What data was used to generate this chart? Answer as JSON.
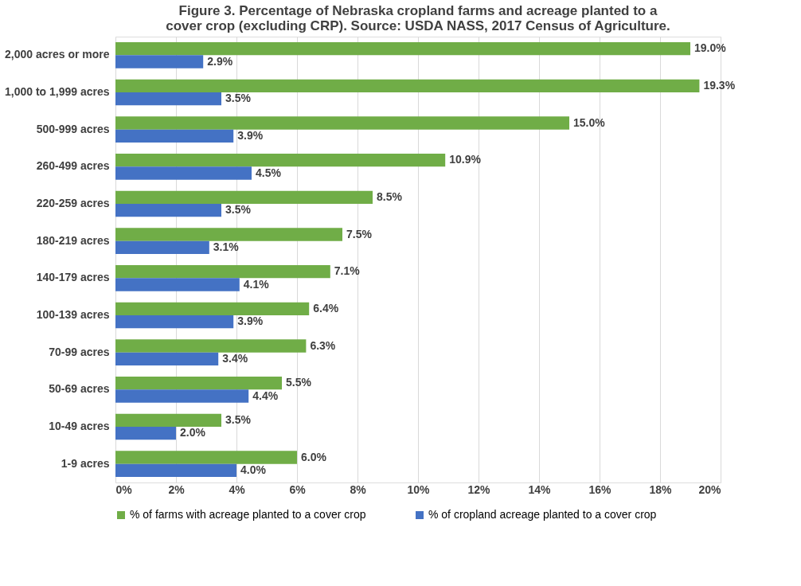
{
  "chart_data": {
    "type": "bar",
    "orientation": "horizontal",
    "title": "Figure 3.  Percentage of Nebraska cropland farms and acreage planted to a cover crop (excluding CRP). Source: USDA NASS, 2017 Census of Agriculture.",
    "categories": [
      "2,000 acres or more",
      "1,000 to 1,999 acres",
      "500-999 acres",
      "260-499 acres",
      "220-259 acres",
      "180-219 acres",
      "140-179 acres",
      "100-139 acres",
      "70-99 acres",
      "50-69 acres",
      "10-49 acres",
      "1-9 acres"
    ],
    "series": [
      {
        "name": "% of farms with acreage planted to a cover crop",
        "color": "#70ad47",
        "values": [
          19.0,
          19.3,
          15.0,
          10.9,
          8.5,
          7.5,
          7.1,
          6.4,
          6.3,
          5.5,
          3.5,
          6.0
        ],
        "value_labels": [
          "19.0%",
          "19.3%",
          "15.0%",
          "10.9%",
          "8.5%",
          "7.5%",
          "7.1%",
          "6.4%",
          "6.3%",
          "5.5%",
          "3.5%",
          "6.0%"
        ]
      },
      {
        "name": "% of cropland acreage planted to a cover crop",
        "color": "#4472c4",
        "values": [
          2.9,
          3.5,
          3.9,
          4.5,
          3.5,
          3.1,
          4.1,
          3.9,
          3.4,
          4.4,
          2.0,
          4.0
        ],
        "value_labels": [
          "2.9%",
          "3.5%",
          "3.9%",
          "4.5%",
          "3.5%",
          "3.1%",
          "4.1%",
          "3.9%",
          "3.4%",
          "4.4%",
          "2.0%",
          "4.0%"
        ]
      }
    ],
    "xlim": [
      0,
      20
    ],
    "xticks": [
      {
        "value": 0,
        "label": "0%"
      },
      {
        "value": 2,
        "label": "2%"
      },
      {
        "value": 4,
        "label": "4%"
      },
      {
        "value": 6,
        "label": "6%"
      },
      {
        "value": 8,
        "label": "8%"
      },
      {
        "value": 10,
        "label": "10%"
      },
      {
        "value": 12,
        "label": "12%"
      },
      {
        "value": 14,
        "label": "14%"
      },
      {
        "value": 16,
        "label": "16%"
      },
      {
        "value": 18,
        "label": "18%"
      },
      {
        "value": 20,
        "label": "20%"
      }
    ],
    "grid": "x",
    "legend": "bottom"
  }
}
